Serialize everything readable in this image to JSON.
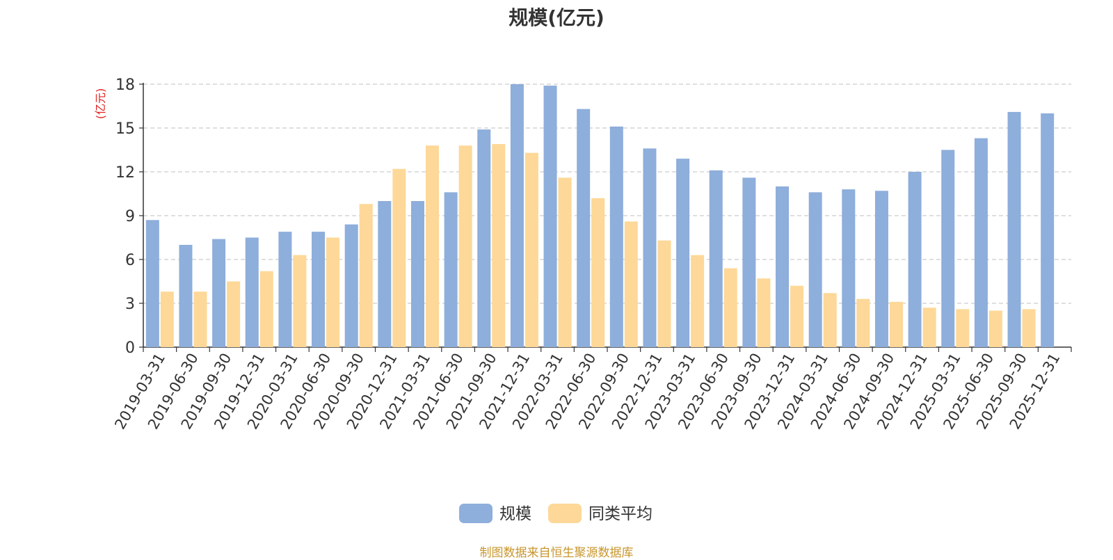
{
  "chart_data": {
    "type": "bar",
    "title": "规模(亿元)",
    "ylabel": "(亿元)",
    "xlabel": "",
    "ylim": [
      0,
      18
    ],
    "yticks": [
      0,
      3,
      6,
      9,
      12,
      15,
      18
    ],
    "grid": true,
    "legend_position": "bottom",
    "categories": [
      "2019-03-31",
      "2019-06-30",
      "2019-09-30",
      "2019-12-31",
      "2020-03-31",
      "2020-06-30",
      "2020-09-30",
      "2020-12-31",
      "2021-03-31",
      "2021-06-30",
      "2021-09-30",
      "2021-12-31",
      "2022-03-31",
      "2022-06-30",
      "2022-09-30",
      "2022-12-31",
      "2023-03-31",
      "2023-06-30",
      "2023-09-30",
      "2023-12-31",
      "2024-03-31",
      "2024-06-30",
      "2024-09-30",
      "2024-12-31",
      "2025-03-31",
      "2025-06-30",
      "2025-09-30",
      "2025-12-31"
    ],
    "series": [
      {
        "name": "规模",
        "color": "#8eaedb",
        "values": [
          8.7,
          7.0,
          7.4,
          7.5,
          7.9,
          7.9,
          8.4,
          10.0,
          10.0,
          10.6,
          14.9,
          18.0,
          17.9,
          16.3,
          15.1,
          13.6,
          12.9,
          12.1,
          11.6,
          11.0,
          10.6,
          10.8,
          10.7,
          12.0,
          13.5,
          14.3,
          16.1,
          16.0
        ]
      },
      {
        "name": "同类平均",
        "color": "#fdd898",
        "values": [
          3.8,
          3.8,
          4.5,
          5.2,
          6.3,
          7.5,
          9.8,
          12.2,
          13.8,
          13.8,
          13.9,
          13.3,
          11.6,
          10.2,
          8.6,
          7.3,
          6.3,
          5.4,
          4.7,
          4.2,
          3.7,
          3.3,
          3.1,
          2.7,
          2.6,
          2.5,
          2.6,
          null
        ]
      }
    ]
  },
  "footer": {
    "source_text": "制图数据来自恒生聚源数据库"
  }
}
